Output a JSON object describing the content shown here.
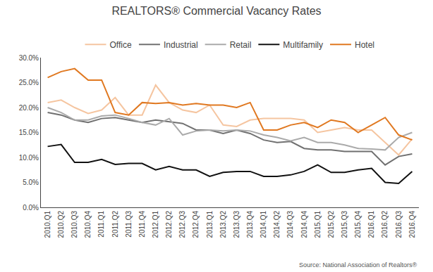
{
  "chart_data": {
    "type": "line",
    "title": "REALTORS® Commercial Vacancy Rates",
    "annotations": [
      "Source: National Association of Realtors®"
    ],
    "categories": [
      "2010.Q1",
      "2010.Q2",
      "2010.Q3",
      "2010.Q4",
      "2011.Q1",
      "2011.Q2",
      "2011.Q3",
      "2011.Q4",
      "2012.Q1",
      "2012.Q2",
      "2012.Q3",
      "2012.Q4",
      "2013.Q1",
      "2013.Q2",
      "2013.Q3",
      "2013.Q4",
      "2014.Q1",
      "2014.Q2",
      "2014.Q3",
      "2014.Q4",
      "2015.Q1",
      "2015.Q2",
      "2015.Q3",
      "2015.Q4",
      "2016.Q1",
      "2016.Q2",
      "2016.Q3",
      "2016.Q4"
    ],
    "series": [
      {
        "name": "Office",
        "color": "#F5C5A0",
        "values": [
          0.21,
          0.215,
          0.2,
          0.188,
          0.195,
          0.22,
          0.185,
          0.185,
          0.245,
          0.21,
          0.195,
          0.19,
          0.205,
          0.165,
          0.162,
          0.175,
          0.178,
          0.178,
          0.178,
          0.175,
          0.15,
          0.155,
          0.16,
          0.155,
          0.155,
          0.13,
          0.105,
          0.137
        ]
      },
      {
        "name": "Industrial",
        "color": "#707070",
        "values": [
          0.19,
          0.185,
          0.175,
          0.17,
          0.178,
          0.18,
          0.175,
          0.17,
          0.175,
          0.172,
          0.168,
          0.155,
          0.155,
          0.148,
          0.155,
          0.148,
          0.135,
          0.13,
          0.132,
          0.118,
          0.115,
          0.115,
          0.112,
          0.112,
          0.112,
          0.085,
          0.102,
          0.107
        ]
      },
      {
        "name": "Retail",
        "color": "#AAAAAA",
        "values": [
          0.2,
          0.19,
          0.175,
          0.175,
          0.183,
          0.185,
          0.178,
          0.17,
          0.165,
          0.178,
          0.145,
          0.153,
          0.155,
          0.153,
          0.155,
          0.153,
          0.145,
          0.14,
          0.133,
          0.14,
          0.13,
          0.13,
          0.125,
          0.118,
          0.117,
          0.115,
          0.14,
          0.15
        ]
      },
      {
        "name": "Multifamily",
        "color": "#111111",
        "values": [
          0.122,
          0.126,
          0.09,
          0.09,
          0.096,
          0.086,
          0.088,
          0.088,
          0.075,
          0.082,
          0.075,
          0.075,
          0.062,
          0.07,
          0.072,
          0.072,
          0.062,
          0.062,
          0.065,
          0.072,
          0.085,
          0.07,
          0.07,
          0.075,
          0.078,
          0.05,
          0.048,
          0.072
        ]
      },
      {
        "name": "Hotel",
        "color": "#E07820",
        "values": [
          0.26,
          0.272,
          0.278,
          0.255,
          0.255,
          0.19,
          0.185,
          0.21,
          0.208,
          0.21,
          0.205,
          0.208,
          0.205,
          0.205,
          0.2,
          0.21,
          0.155,
          0.155,
          0.165,
          0.17,
          0.16,
          0.175,
          0.17,
          0.15,
          0.165,
          0.18,
          0.145,
          0.135
        ]
      }
    ],
    "ylim": [
      0.0,
      0.3
    ],
    "yticks": [
      {
        "value": 0.0,
        "label": "0.0%"
      },
      {
        "value": 0.05,
        "label": "5.0%"
      },
      {
        "value": 0.1,
        "label": "10.0%"
      },
      {
        "value": 0.15,
        "label": "15.0%"
      },
      {
        "value": 0.2,
        "label": "20.0%"
      },
      {
        "value": 0.25,
        "label": "25.0%"
      },
      {
        "value": 0.3,
        "label": "30.0%"
      }
    ],
    "grid": false,
    "legend": "top"
  }
}
